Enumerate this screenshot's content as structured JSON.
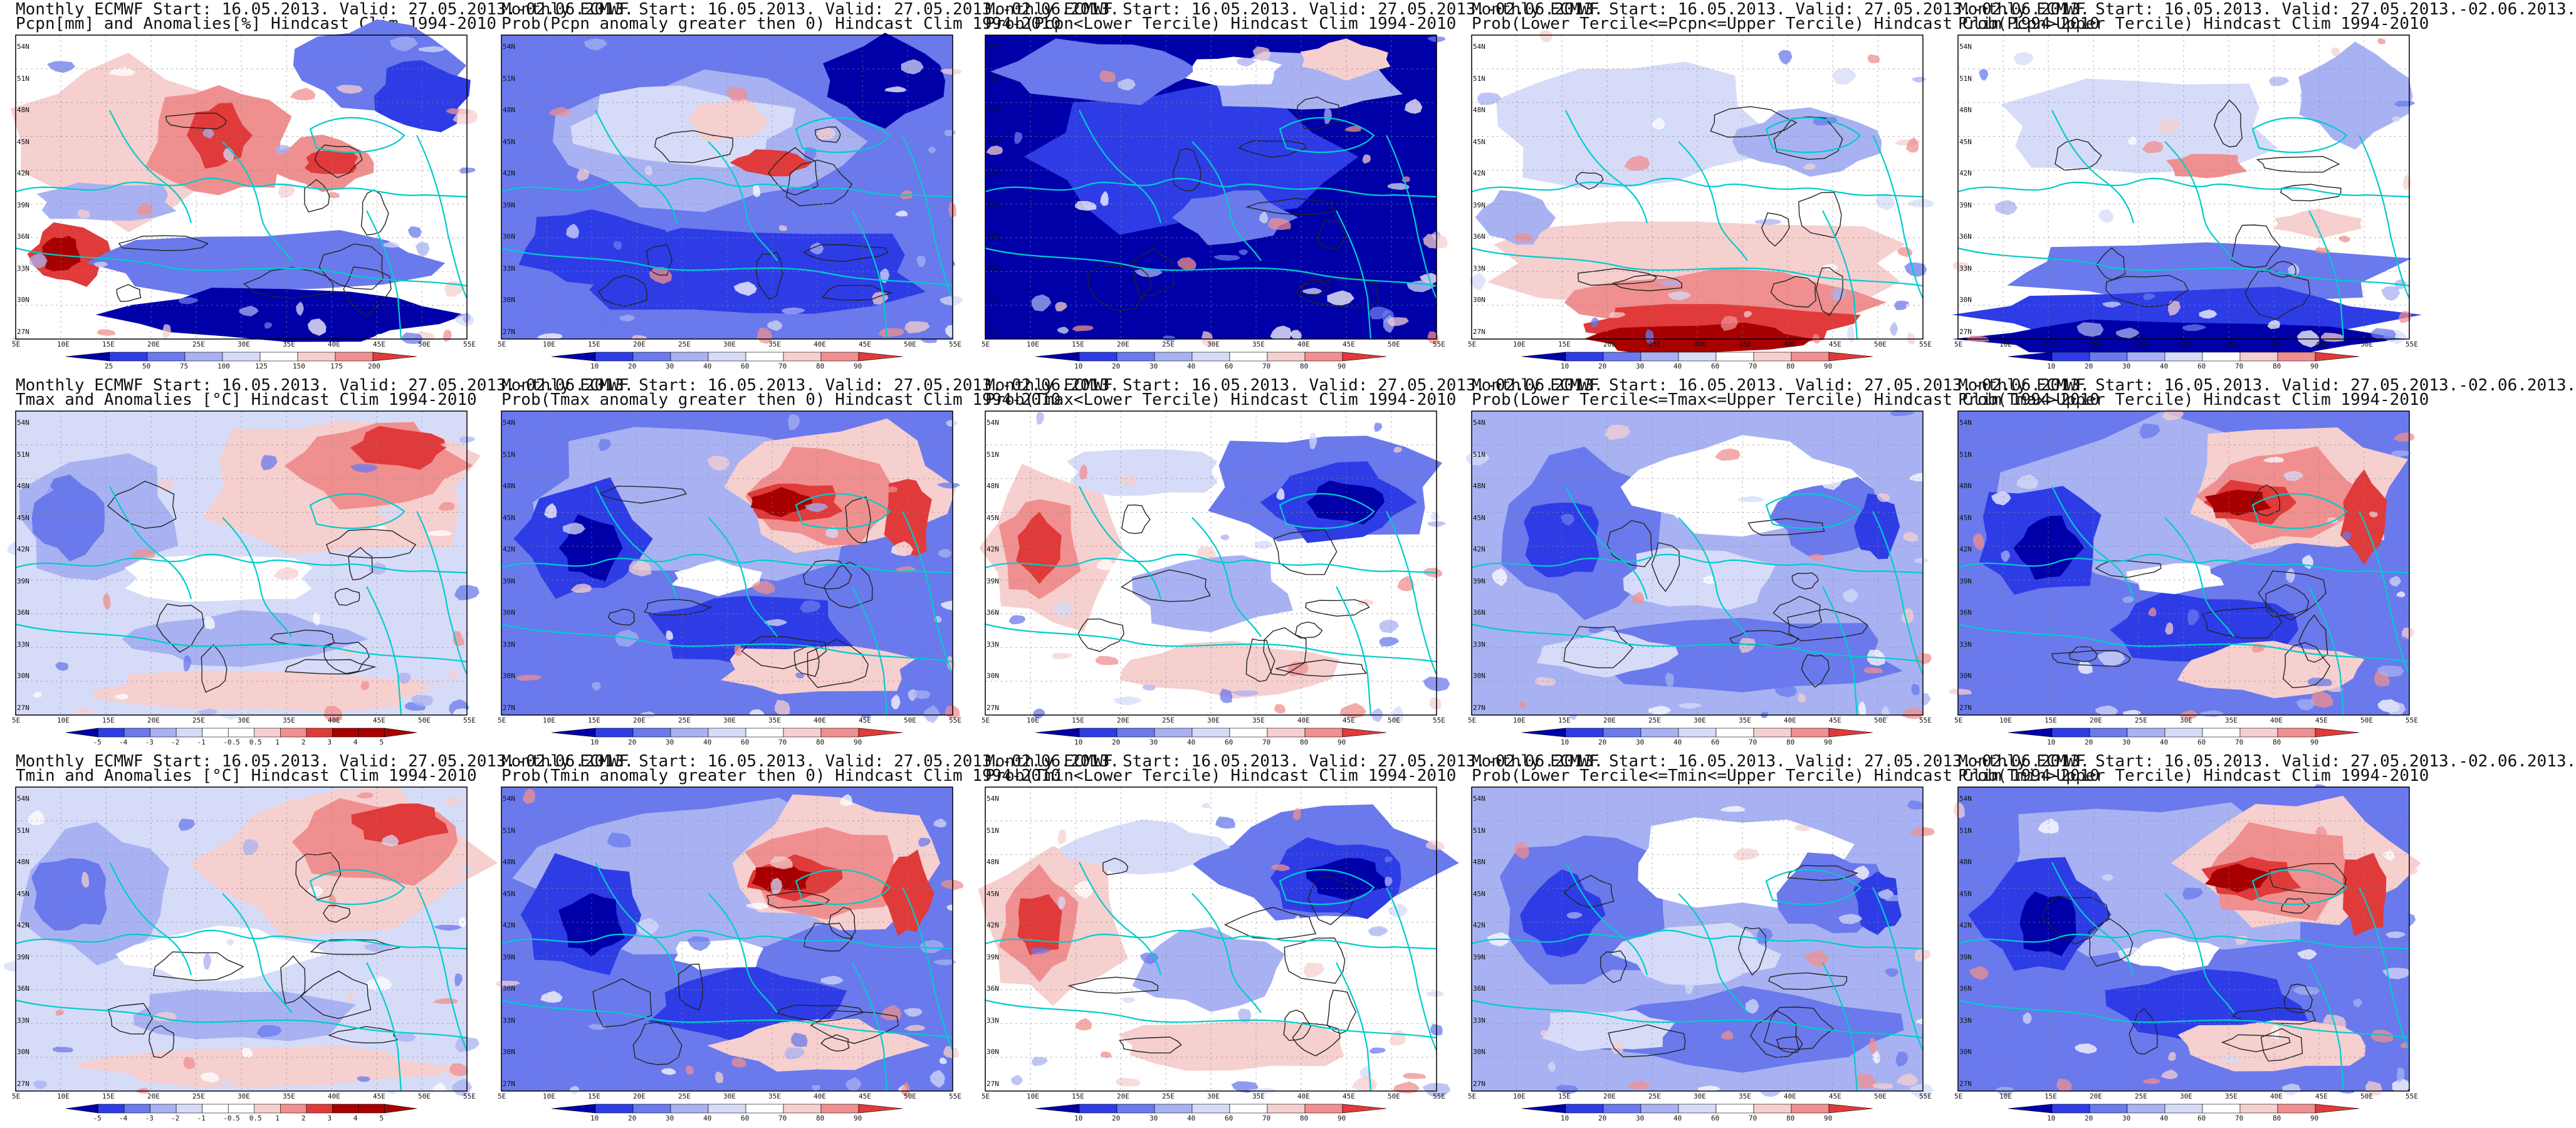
{
  "colors": {
    "deep_blue": "#0000a8",
    "blue": "#2e3ce6",
    "mid_blue": "#6a79ec",
    "light_blue": "#a8b2f2",
    "pale_blue": "#d6dbf8",
    "white": "#ffffff",
    "pale_red": "#f6cfcf",
    "light_red": "#f08f8f",
    "red": "#e03a3a",
    "dark_red": "#a80000",
    "coast": "#00cccc",
    "contour": "#222222"
  },
  "axes": {
    "x_ticks": [
      "5E",
      "10E",
      "15E",
      "20E",
      "25E",
      "30E",
      "35E",
      "40E",
      "45E",
      "50E",
      "55E"
    ],
    "y_ticks": [
      "54N",
      "51N",
      "48N",
      "45N",
      "42N",
      "39N",
      "36N",
      "33N",
      "30N",
      "27N"
    ]
  },
  "panels": [
    {
      "id": "r1c1",
      "title1": "Monthly ECMWF Start: 16.05.2013. Valid: 27.05.2013.-02.06.2013.",
      "title2": "Pcpn[mm] and Anomalies[%] Hindcast Clim 1994-2010",
      "colorbar": [
        "25",
        "50",
        "75",
        "100",
        "125",
        "150",
        "175",
        "200"
      ],
      "field": "precip_anom"
    },
    {
      "id": "r1c2",
      "title1": "Monthly ECMWF Start: 16.05.2013. Valid: 27.05.2013.-02.06.2013.",
      "title2": "Prob(Pcpn anomaly greater then 0) Hindcast Clim 1994-2010",
      "colorbar": [
        "10",
        "20",
        "30",
        "40",
        "60",
        "70",
        "80",
        "90"
      ],
      "field": "prob_mostly_blue"
    },
    {
      "id": "r1c3",
      "title1": "Monthly ECMWF Start: 16.05.2013. Valid: 27.05.2013.-02.06.2013.",
      "title2": "Prob(Pcpn<Lower Tercile) Hindcast Clim 1994-2010",
      "colorbar": [
        "10",
        "20",
        "30",
        "40",
        "60",
        "70",
        "80",
        "90"
      ],
      "field": "prob_deep_blue"
    },
    {
      "id": "r1c4",
      "title1": "Monthly ECMWF Start: 16.05.2013. Valid: 27.05.2013.-02.06.2013.",
      "title2": "Prob(Lower Tercile<=Pcpn<=Upper Tercile) Hindcast Clim 1994-2010",
      "colorbar": [
        "10",
        "20",
        "30",
        "40",
        "60",
        "70",
        "80",
        "90"
      ],
      "field": "prob_red_south"
    },
    {
      "id": "r1c5",
      "title1": "Monthly ECMWF Start: 16.05.2013. Valid: 27.05.2013.-02.06.2013.",
      "title2": "Prob(Pcpn>Upper Tercile) Hindcast Clim 1994-2010",
      "colorbar": [
        "10",
        "20",
        "30",
        "40",
        "60",
        "70",
        "80",
        "90"
      ],
      "field": "prob_white_blue_south"
    },
    {
      "id": "r2c1",
      "title1": "Monthly ECMWF Start: 16.05.2013. Valid: 27.05.2013.-02.06.2013.",
      "title2": "Tmax and Anomalies [°C] Hindcast Clim 1994-2010",
      "colorbar": [
        "-5",
        "-4",
        "-3",
        "-2",
        "-1",
        "-0.5",
        "0.5",
        "1",
        "2",
        "3",
        "4",
        "5"
      ],
      "field": "temp_anom"
    },
    {
      "id": "r2c2",
      "title1": "Monthly ECMWF Start: 16.05.2013. Valid: 27.05.2013.-02.06.2013.",
      "title2": "Prob(Tmax anomaly greater then 0) Hindcast Clim 1994-2010",
      "colorbar": [
        "10",
        "20",
        "30",
        "40",
        "60",
        "70",
        "80",
        "90"
      ],
      "field": "prob_warm_east"
    },
    {
      "id": "r2c3",
      "title1": "Monthly ECMWF Start: 16.05.2013. Valid: 27.05.2013.-02.06.2013.",
      "title2": "Prob(Tmax<Lower Tercile) Hindcast Clim 1994-2010",
      "colorbar": [
        "10",
        "20",
        "30",
        "40",
        "60",
        "70",
        "80",
        "90"
      ],
      "field": "prob_warm_west"
    },
    {
      "id": "r2c4",
      "title1": "Monthly ECMWF Start: 16.05.2013. Valid: 27.05.2013.-02.06.2013.",
      "title2": "Prob(Lower Tercile<=Tmax<=Upper Tercile) Hindcast Clim 1994-2010",
      "colorbar": [
        "10",
        "20",
        "30",
        "40",
        "60",
        "70",
        "80",
        "90"
      ],
      "field": "prob_mixed_blue"
    },
    {
      "id": "r2c5",
      "title1": "Monthly ECMWF Start: 16.05.2013. Valid: 27.05.2013.-02.06.2013.",
      "title2": "Prob(Tmax>Upper Tercile) Hindcast Clim 1994-2010",
      "colorbar": [
        "10",
        "20",
        "30",
        "40",
        "60",
        "70",
        "80",
        "90"
      ],
      "field": "prob_warm_east"
    },
    {
      "id": "r3c1",
      "title1": "Monthly ECMWF Start: 16.05.2013. Valid: 27.05.2013.-02.06.2013.",
      "title2": "Tmin and Anomalies [°C] Hindcast Clim 1994-2010",
      "colorbar": [
        "-5",
        "-4",
        "-3",
        "-2",
        "-1",
        "-0.5",
        "0.5",
        "1",
        "2",
        "3",
        "4",
        "5"
      ],
      "field": "temp_anom"
    },
    {
      "id": "r3c2",
      "title1": "Monthly ECMWF Start: 16.05.2013. Valid: 27.05.2013.-02.06.2013.",
      "title2": "Prob(Tmin anomaly greater then 0) Hindcast Clim 1994-2010",
      "colorbar": [
        "10",
        "20",
        "30",
        "40",
        "60",
        "70",
        "80",
        "90"
      ],
      "field": "prob_warm_east"
    },
    {
      "id": "r3c3",
      "title1": "Monthly ECMWF Start: 16.05.2013. Valid: 27.05.2013.-02.06.2013.",
      "title2": "Prob(Tmin<Lower Tercile) Hindcast Clim 1994-2010",
      "colorbar": [
        "10",
        "20",
        "30",
        "40",
        "60",
        "70",
        "80",
        "90"
      ],
      "field": "prob_warm_west"
    },
    {
      "id": "r3c4",
      "title1": "Monthly ECMWF Start: 16.05.2013. Valid: 27.05.2013.-02.06.2013.",
      "title2": "Prob(Lower Tercile<=Tmin<=Upper Tercile) Hindcast Clim 1994-2010",
      "colorbar": [
        "10",
        "20",
        "30",
        "40",
        "60",
        "70",
        "80",
        "90"
      ],
      "field": "prob_mixed_blue"
    },
    {
      "id": "r3c5",
      "title1": "Monthly ECMWF Start: 16.05.2013. Valid: 27.05.2013.-02.06.2013.",
      "title2": "Prob(Tmin>Upper Tercile) Hindcast Clim 1994-2010",
      "colorbar": [
        "10",
        "20",
        "30",
        "40",
        "60",
        "70",
        "80",
        "90"
      ],
      "field": "prob_warm_east"
    }
  ]
}
